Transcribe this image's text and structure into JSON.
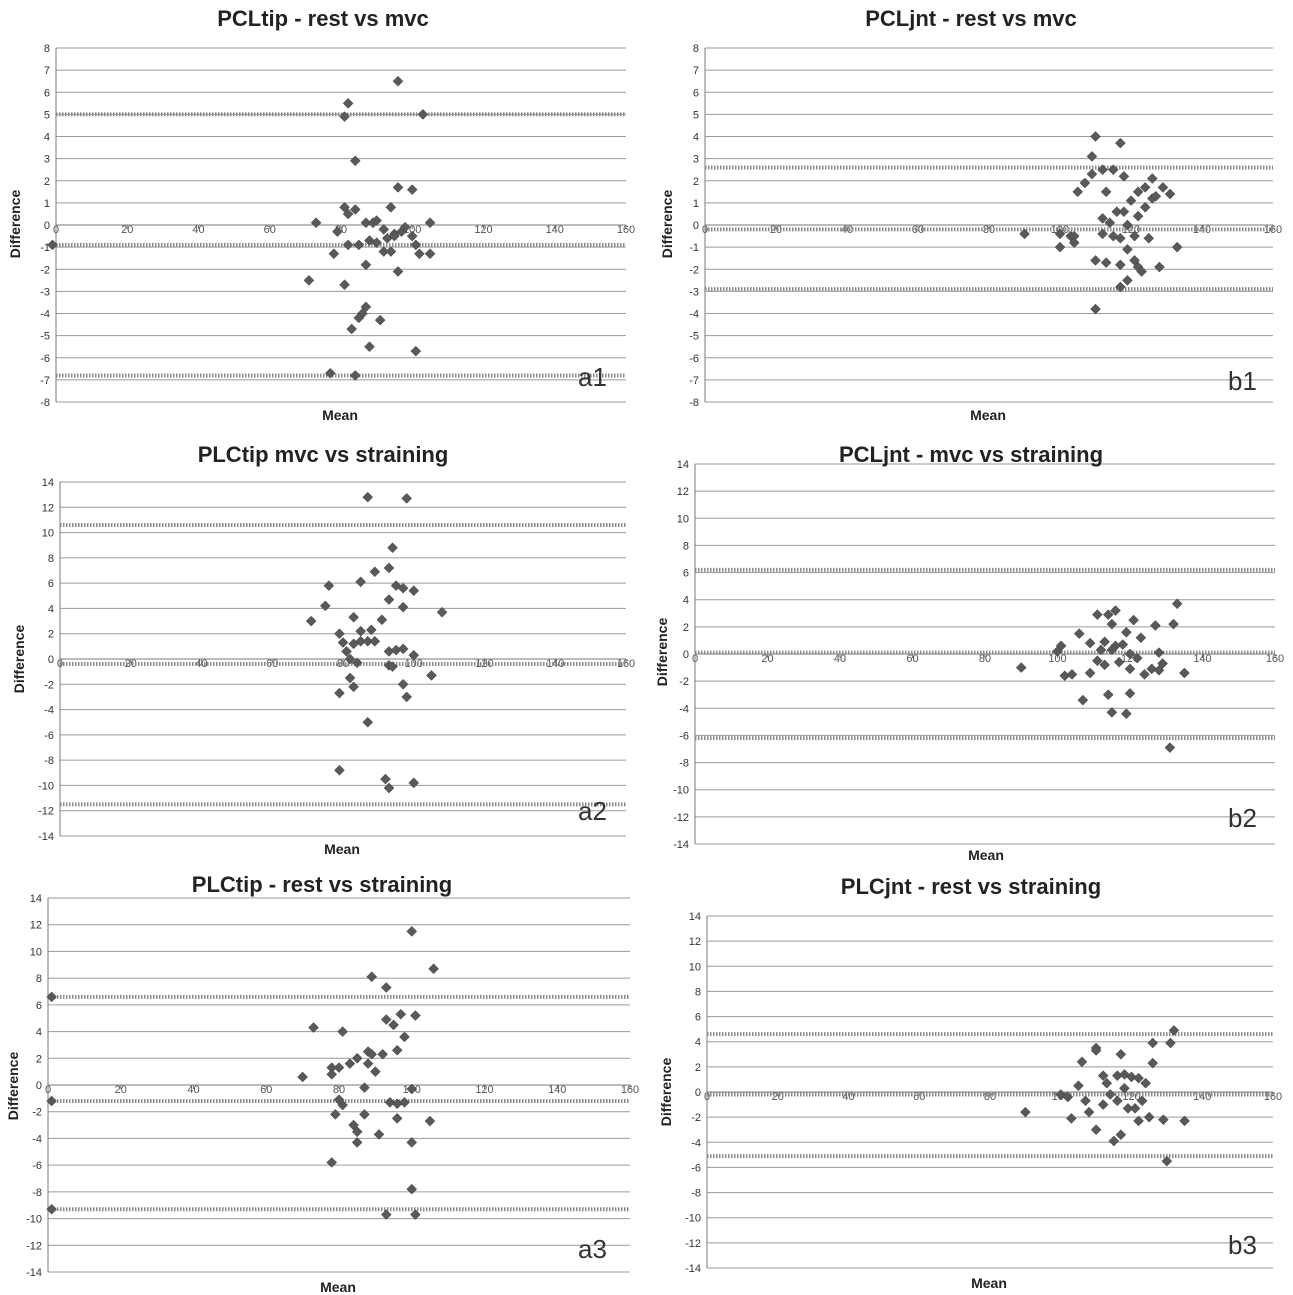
{
  "chart_data": [
    {
      "id": "a1",
      "type": "scatter",
      "title": "PCLtip - rest vs mvc",
      "xlabel": "Mean",
      "ylabel": "Difference",
      "panel_label": "a1",
      "xlim": [
        0,
        160
      ],
      "ylim": [
        -8,
        8
      ],
      "xticks": [
        0,
        20,
        40,
        60,
        80,
        100,
        120,
        140,
        160
      ],
      "ytick_step": 1,
      "grid": true,
      "reference_lines": [
        5.0,
        -0.9,
        -6.8
      ],
      "points": [
        [
          96,
          6.5
        ],
        [
          82,
          5.5
        ],
        [
          81,
          4.9
        ],
        [
          103,
          5.0
        ],
        [
          84,
          2.9
        ],
        [
          96,
          1.7
        ],
        [
          100,
          1.6
        ],
        [
          81,
          0.8
        ],
        [
          82,
          0.5
        ],
        [
          84,
          0.7
        ],
        [
          94,
          0.8
        ],
        [
          73,
          0.1
        ],
        [
          87,
          0.1
        ],
        [
          89,
          0.1
        ],
        [
          90,
          0.2
        ],
        [
          105,
          0.1
        ],
        [
          79,
          -0.3
        ],
        [
          92,
          -0.2
        ],
        [
          95,
          -0.4
        ],
        [
          97,
          -0.3
        ],
        [
          98,
          -0.1
        ],
        [
          100,
          -0.5
        ],
        [
          82,
          -0.9
        ],
        [
          85,
          -0.9
        ],
        [
          88,
          -0.7
        ],
        [
          90,
          -0.8
        ],
        [
          93,
          -0.6
        ],
        [
          95,
          -0.5
        ],
        [
          101,
          -0.9
        ],
        [
          78,
          -1.3
        ],
        [
          92,
          -1.2
        ],
        [
          94,
          -1.2
        ],
        [
          102,
          -1.3
        ],
        [
          105,
          -1.3
        ],
        [
          87,
          -1.8
        ],
        [
          96,
          -2.1
        ],
        [
          71,
          -2.5
        ],
        [
          81,
          -2.7
        ],
        [
          87,
          -3.7
        ],
        [
          86,
          -4.0
        ],
        [
          85,
          -4.2
        ],
        [
          91,
          -4.3
        ],
        [
          83,
          -4.7
        ],
        [
          88,
          -5.5
        ],
        [
          101,
          -5.7
        ],
        [
          77,
          -6.7
        ],
        [
          84,
          -6.8
        ],
        [
          -1,
          -0.9
        ]
      ]
    },
    {
      "id": "b1",
      "type": "scatter",
      "title": "PCLjnt - rest vs mvc",
      "xlabel": "Mean",
      "ylabel": "Difference",
      "panel_label": "b1",
      "xlim": [
        0,
        160
      ],
      "ylim": [
        -8,
        8
      ],
      "xticks": [
        0,
        20,
        40,
        60,
        80,
        100,
        120,
        140,
        160
      ],
      "ytick_step": 1,
      "grid": true,
      "reference_lines": [
        2.6,
        -0.2,
        -2.9
      ],
      "points": [
        [
          110,
          4.0
        ],
        [
          117,
          3.7
        ],
        [
          109,
          3.1
        ],
        [
          112,
          2.5
        ],
        [
          115,
          2.5
        ],
        [
          109,
          2.3
        ],
        [
          118,
          2.2
        ],
        [
          126,
          2.1
        ],
        [
          107,
          1.9
        ],
        [
          124,
          1.7
        ],
        [
          129,
          1.7
        ],
        [
          105,
          1.5
        ],
        [
          113,
          1.5
        ],
        [
          122,
          1.5
        ],
        [
          131,
          1.4
        ],
        [
          126,
          1.2
        ],
        [
          127,
          1.3
        ],
        [
          120,
          1.1
        ],
        [
          124,
          0.8
        ],
        [
          116,
          0.6
        ],
        [
          118,
          0.6
        ],
        [
          122,
          0.4
        ],
        [
          112,
          0.3
        ],
        [
          114,
          0.1
        ],
        [
          119,
          0.0
        ],
        [
          90,
          -0.4
        ],
        [
          100,
          -0.4
        ],
        [
          103,
          -0.5
        ],
        [
          104,
          -0.5
        ],
        [
          112,
          -0.4
        ],
        [
          115,
          -0.5
        ],
        [
          117,
          -0.6
        ],
        [
          121,
          -0.5
        ],
        [
          125,
          -0.6
        ],
        [
          100,
          -1.0
        ],
        [
          104,
          -0.8
        ],
        [
          119,
          -1.1
        ],
        [
          133,
          -1.0
        ],
        [
          110,
          -1.6
        ],
        [
          113,
          -1.7
        ],
        [
          117,
          -1.8
        ],
        [
          121,
          -1.6
        ],
        [
          122,
          -1.9
        ],
        [
          128,
          -1.9
        ],
        [
          123,
          -2.1
        ],
        [
          119,
          -2.5
        ],
        [
          117,
          -2.8
        ],
        [
          110,
          -3.8
        ]
      ]
    },
    {
      "id": "a2",
      "type": "scatter",
      "title": "PLCtip mvc vs straining",
      "xlabel": "Mean",
      "ylabel": "Difference",
      "panel_label": "a2",
      "xlim": [
        0,
        160
      ],
      "ylim": [
        -14,
        14
      ],
      "xticks": [
        0,
        20,
        40,
        60,
        80,
        100,
        120,
        140,
        160
      ],
      "ytick_step": 2,
      "grid": true,
      "reference_lines": [
        10.6,
        -0.4,
        -11.5
      ],
      "points": [
        [
          87,
          12.8
        ],
        [
          98,
          12.7
        ],
        [
          94,
          8.8
        ],
        [
          89,
          6.9
        ],
        [
          93,
          7.2
        ],
        [
          85,
          6.1
        ],
        [
          95,
          5.8
        ],
        [
          76,
          5.8
        ],
        [
          97,
          5.6
        ],
        [
          100,
          5.4
        ],
        [
          75,
          4.2
        ],
        [
          93,
          4.7
        ],
        [
          97,
          4.1
        ],
        [
          108,
          3.7
        ],
        [
          83,
          3.3
        ],
        [
          71,
          3.0
        ],
        [
          91,
          3.1
        ],
        [
          79,
          2.0
        ],
        [
          85,
          2.2
        ],
        [
          88,
          2.3
        ],
        [
          83,
          1.2
        ],
        [
          85,
          1.4
        ],
        [
          87,
          1.4
        ],
        [
          80,
          1.3
        ],
        [
          89,
          1.4
        ],
        [
          93,
          0.6
        ],
        [
          95,
          0.7
        ],
        [
          97,
          0.8
        ],
        [
          100,
          0.3
        ],
        [
          81,
          0.6
        ],
        [
          82,
          0.0
        ],
        [
          84,
          -0.3
        ],
        [
          93,
          -0.5
        ],
        [
          94,
          -0.6
        ],
        [
          105,
          -1.3
        ],
        [
          82,
          -1.5
        ],
        [
          97,
          -2.0
        ],
        [
          83,
          -2.2
        ],
        [
          79,
          -2.7
        ],
        [
          98,
          -3.0
        ],
        [
          87,
          -5.0
        ],
        [
          79,
          -8.8
        ],
        [
          92,
          -9.5
        ],
        [
          93,
          -10.2
        ],
        [
          100,
          -9.8
        ]
      ]
    },
    {
      "id": "b2",
      "type": "scatter",
      "title": "PCLjnt - mvc vs straining",
      "xlabel": "Mean",
      "ylabel": "Difference",
      "panel_label": "b2",
      "xlim": [
        0,
        160
      ],
      "ylim": [
        -14,
        14
      ],
      "xticks": [
        0,
        20,
        40,
        60,
        80,
        100,
        120,
        140,
        160
      ],
      "ytick_step": 2,
      "grid": true,
      "reference_lines": [
        6.2,
        0.1,
        -6.2
      ],
      "points": [
        [
          133,
          3.7
        ],
        [
          116,
          3.2
        ],
        [
          111,
          2.9
        ],
        [
          114,
          2.9
        ],
        [
          121,
          2.5
        ],
        [
          115,
          2.2
        ],
        [
          127,
          2.1
        ],
        [
          132,
          2.2
        ],
        [
          119,
          1.6
        ],
        [
          106,
          1.5
        ],
        [
          123,
          1.2
        ],
        [
          109,
          0.8
        ],
        [
          113,
          0.9
        ],
        [
          118,
          0.7
        ],
        [
          116,
          0.6
        ],
        [
          101,
          0.6
        ],
        [
          100,
          0.2
        ],
        [
          112,
          0.3
        ],
        [
          115,
          0.3
        ],
        [
          120,
          0.0
        ],
        [
          122,
          -0.3
        ],
        [
          128,
          0.1
        ],
        [
          111,
          -0.5
        ],
        [
          113,
          -0.8
        ],
        [
          117,
          -0.6
        ],
        [
          129,
          -0.7
        ],
        [
          102,
          -1.6
        ],
        [
          104,
          -1.5
        ],
        [
          109,
          -1.4
        ],
        [
          120,
          -1.1
        ],
        [
          124,
          -1.5
        ],
        [
          126,
          -1.1
        ],
        [
          128,
          -1.2
        ],
        [
          90,
          -1.0
        ],
        [
          135,
          -1.4
        ],
        [
          107,
          -3.4
        ],
        [
          114,
          -3.0
        ],
        [
          120,
          -2.9
        ],
        [
          115,
          -4.3
        ],
        [
          119,
          -4.4
        ],
        [
          131,
          -6.9
        ]
      ]
    },
    {
      "id": "a3",
      "type": "scatter",
      "title": "PLCtip - rest vs straining",
      "xlabel": "Mean",
      "ylabel": "Difference",
      "panel_label": "a3",
      "xlim": [
        0,
        160
      ],
      "ylim": [
        -14,
        14
      ],
      "xticks": [
        0,
        20,
        40,
        60,
        80,
        100,
        120,
        140,
        160
      ],
      "ytick_step": 2,
      "grid": true,
      "reference_lines": [
        6.6,
        -1.2,
        -9.3
      ],
      "points": [
        [
          100,
          11.5
        ],
        [
          106,
          8.7
        ],
        [
          89,
          8.1
        ],
        [
          93,
          7.3
        ],
        [
          97,
          5.3
        ],
        [
          101,
          5.2
        ],
        [
          93,
          4.9
        ],
        [
          95,
          4.5
        ],
        [
          73,
          4.3
        ],
        [
          81,
          4.0
        ],
        [
          98,
          3.6
        ],
        [
          85,
          2.0
        ],
        [
          88,
          2.5
        ],
        [
          89,
          2.3
        ],
        [
          92,
          2.3
        ],
        [
          96,
          2.6
        ],
        [
          83,
          1.6
        ],
        [
          88,
          1.6
        ],
        [
          90,
          1.0
        ],
        [
          80,
          1.3
        ],
        [
          70,
          0.6
        ],
        [
          78,
          0.8
        ],
        [
          78,
          1.3
        ],
        [
          87,
          -0.2
        ],
        [
          100,
          -0.3
        ],
        [
          94,
          -1.3
        ],
        [
          96,
          -1.4
        ],
        [
          98,
          -1.3
        ],
        [
          80,
          -1.1
        ],
        [
          81,
          -1.5
        ],
        [
          79,
          -2.2
        ],
        [
          87,
          -2.2
        ],
        [
          96,
          -2.5
        ],
        [
          105,
          -2.7
        ],
        [
          84,
          -3.0
        ],
        [
          85,
          -3.5
        ],
        [
          91,
          -3.7
        ],
        [
          85,
          -4.3
        ],
        [
          100,
          -4.3
        ],
        [
          78,
          -5.8
        ],
        [
          100,
          -7.8
        ],
        [
          93,
          -9.7
        ],
        [
          101,
          -9.7
        ],
        [
          1,
          6.6
        ],
        [
          1,
          -1.2
        ],
        [
          1,
          -9.3
        ]
      ]
    },
    {
      "id": "b3",
      "type": "scatter",
      "title": "PLCjnt - rest vs straining",
      "xlabel": "Mean",
      "ylabel": "Difference",
      "panel_label": "b3",
      "xlim": [
        0,
        160
      ],
      "ylim": [
        -14,
        14
      ],
      "xticks": [
        0,
        20,
        40,
        60,
        80,
        100,
        120,
        140,
        160
      ],
      "ytick_step": 2,
      "grid": true,
      "reference_lines": [
        4.6,
        -0.2,
        -5.1
      ],
      "points": [
        [
          132,
          4.9
        ],
        [
          126,
          3.9
        ],
        [
          131,
          3.9
        ],
        [
          110,
          3.5
        ],
        [
          110,
          3.3
        ],
        [
          106,
          2.4
        ],
        [
          126,
          2.3
        ],
        [
          117,
          3.0
        ],
        [
          112,
          1.3
        ],
        [
          116,
          1.3
        ],
        [
          118,
          1.4
        ],
        [
          120,
          1.2
        ],
        [
          122,
          1.1
        ],
        [
          124,
          0.7
        ],
        [
          105,
          0.5
        ],
        [
          113,
          0.7
        ],
        [
          118,
          0.3
        ],
        [
          114,
          -0.2
        ],
        [
          100,
          -0.2
        ],
        [
          102,
          -0.4
        ],
        [
          107,
          -0.7
        ],
        [
          116,
          -0.7
        ],
        [
          123,
          -0.7
        ],
        [
          112,
          -1.0
        ],
        [
          119,
          -1.3
        ],
        [
          108,
          -1.6
        ],
        [
          121,
          -1.3
        ],
        [
          125,
          -2.0
        ],
        [
          90,
          -1.6
        ],
        [
          103,
          -2.1
        ],
        [
          122,
          -2.3
        ],
        [
          129,
          -2.2
        ],
        [
          135,
          -2.3
        ],
        [
          110,
          -3.0
        ],
        [
          117,
          -3.4
        ],
        [
          115,
          -3.9
        ],
        [
          130,
          -5.5
        ]
      ]
    }
  ]
}
